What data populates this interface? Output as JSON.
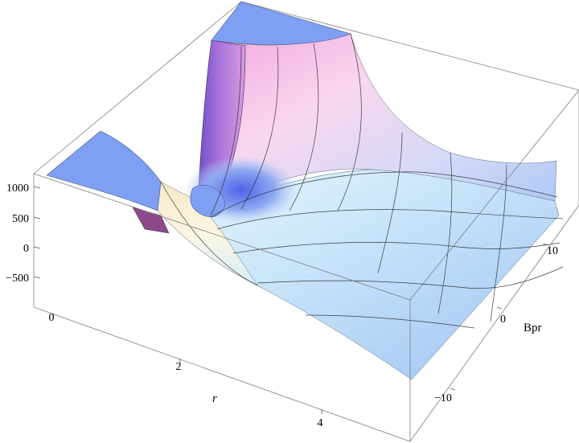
{
  "chart_data": {
    "type": "surface3d",
    "axes": {
      "x": {
        "label": "r",
        "ticks": [
          "0",
          "2",
          "4"
        ],
        "range": [
          0,
          5
        ]
      },
      "y": {
        "label": "Bpr",
        "ticks": [
          "-10",
          "0",
          "10"
        ],
        "range": [
          -15,
          15
        ]
      },
      "z": {
        "label": "",
        "ticks": [
          "1000",
          "500",
          "0",
          "-500"
        ],
        "range": [
          -1000,
          1200
        ]
      }
    },
    "surface": {
      "description_values": {
        "singularity_r": 1.0,
        "clip_top_z": 1200,
        "far_field_z": 0
      },
      "colors": {
        "cap": "#7f9ff2",
        "low": "#c5e2f8",
        "mid": "#a9c7f5",
        "high": "#f7c6e6",
        "violet": "#8b5fd6",
        "deep_blue": "#5b6fe8",
        "cream": "#f4efce"
      }
    },
    "box": {
      "visible": true,
      "grid_lines_on_surface": true
    }
  }
}
